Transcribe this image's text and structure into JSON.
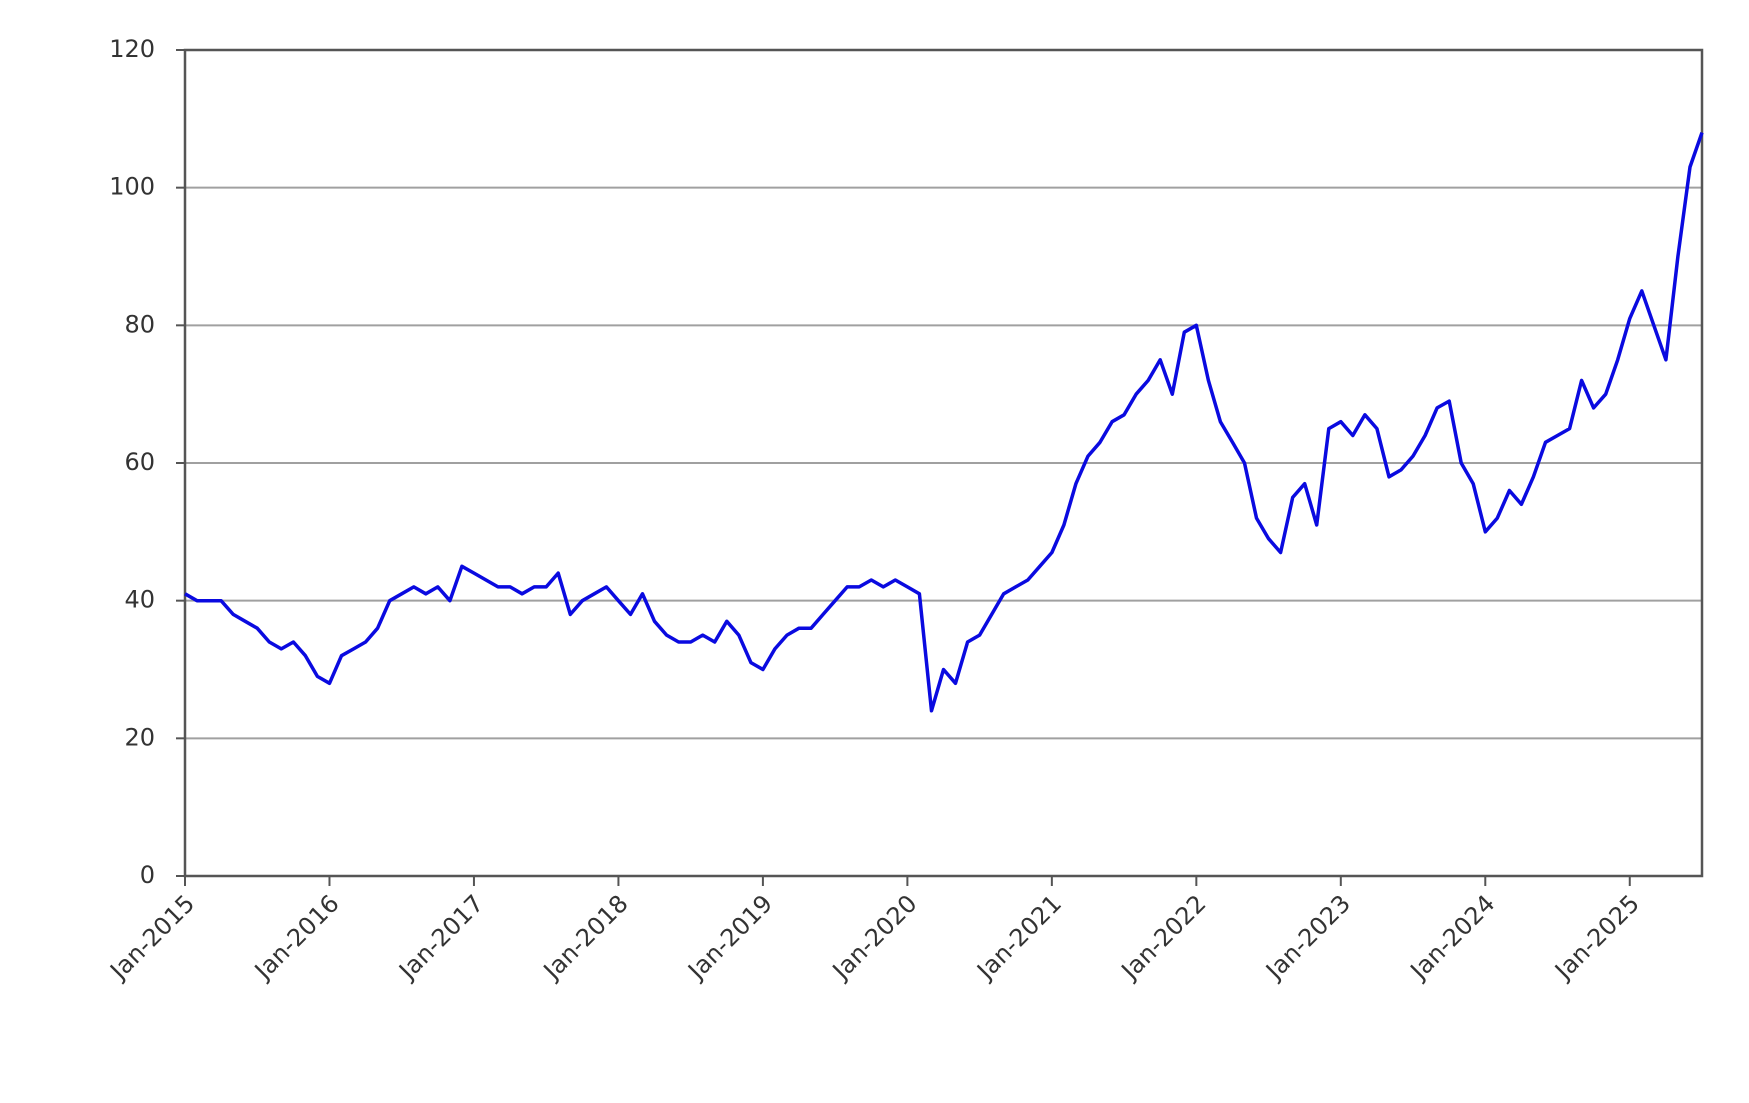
{
  "chart_data": {
    "type": "line",
    "color": "#0a0ae0",
    "grid": true,
    "x": [
      "2015-01",
      "2015-02",
      "2015-03",
      "2015-04",
      "2015-05",
      "2015-06",
      "2015-07",
      "2015-08",
      "2015-09",
      "2015-10",
      "2015-11",
      "2015-12",
      "2016-01",
      "2016-02",
      "2016-03",
      "2016-04",
      "2016-05",
      "2016-06",
      "2016-07",
      "2016-08",
      "2016-09",
      "2016-10",
      "2016-11",
      "2016-12",
      "2017-01",
      "2017-02",
      "2017-03",
      "2017-04",
      "2017-05",
      "2017-06",
      "2017-07",
      "2017-08",
      "2017-09",
      "2017-10",
      "2017-11",
      "2017-12",
      "2018-01",
      "2018-02",
      "2018-03",
      "2018-04",
      "2018-05",
      "2018-06",
      "2018-07",
      "2018-08",
      "2018-09",
      "2018-10",
      "2018-11",
      "2018-12",
      "2019-01",
      "2019-02",
      "2019-03",
      "2019-04",
      "2019-05",
      "2019-06",
      "2019-07",
      "2019-08",
      "2019-09",
      "2019-10",
      "2019-11",
      "2019-12",
      "2020-01",
      "2020-02",
      "2020-03",
      "2020-04",
      "2020-05",
      "2020-06",
      "2020-07",
      "2020-08",
      "2020-09",
      "2020-10",
      "2020-11",
      "2020-12",
      "2021-01",
      "2021-02",
      "2021-03",
      "2021-04",
      "2021-05",
      "2021-06",
      "2021-07",
      "2021-08",
      "2021-09",
      "2021-10",
      "2021-11",
      "2021-12",
      "2022-01",
      "2022-02",
      "2022-03",
      "2022-04",
      "2022-05",
      "2022-06",
      "2022-07",
      "2022-08",
      "2022-09",
      "2022-10",
      "2022-11",
      "2022-12",
      "2023-01",
      "2023-02",
      "2023-03",
      "2023-04",
      "2023-05",
      "2023-06",
      "2023-07",
      "2023-08",
      "2023-09",
      "2023-10",
      "2023-11",
      "2023-12",
      "2024-01",
      "2024-02",
      "2024-03",
      "2024-04",
      "2024-05",
      "2024-06",
      "2024-07",
      "2024-08",
      "2024-09",
      "2024-10",
      "2024-11",
      "2024-12",
      "2025-01",
      "2025-02",
      "2025-03",
      "2025-04",
      "2025-05",
      "2025-06",
      "2025-07"
    ],
    "values": [
      41,
      40,
      40,
      40,
      38,
      37,
      36,
      34,
      33,
      34,
      32,
      29,
      28,
      32,
      33,
      34,
      36,
      40,
      41,
      42,
      41,
      42,
      40,
      45,
      44,
      43,
      42,
      42,
      41,
      42,
      42,
      44,
      38,
      40,
      41,
      42,
      40,
      38,
      41,
      37,
      35,
      34,
      34,
      35,
      34,
      37,
      35,
      31,
      30,
      33,
      35,
      36,
      36,
      38,
      40,
      42,
      42,
      43,
      42,
      43,
      42,
      41,
      24,
      30,
      28,
      34,
      35,
      38,
      41,
      42,
      43,
      45,
      47,
      51,
      57,
      61,
      63,
      66,
      67,
      70,
      72,
      75,
      70,
      79,
      80,
      72,
      66,
      63,
      60,
      52,
      49,
      47,
      55,
      57,
      51,
      65,
      66,
      64,
      67,
      65,
      58,
      59,
      61,
      64,
      68,
      69,
      60,
      57,
      50,
      52,
      56,
      54,
      58,
      63,
      64,
      65,
      72,
      68,
      70,
      75,
      81,
      85,
      80,
      75,
      90,
      103,
      108
    ],
    "xlim": [
      "2015-01",
      "2025-07"
    ],
    "xticks": [
      {
        "value": "2015-01",
        "label": "Jan-2015"
      },
      {
        "value": "2016-01",
        "label": "Jan-2016"
      },
      {
        "value": "2017-01",
        "label": "Jan-2017"
      },
      {
        "value": "2018-01",
        "label": "Jan-2018"
      },
      {
        "value": "2019-01",
        "label": "Jan-2019"
      },
      {
        "value": "2020-01",
        "label": "Jan-2020"
      },
      {
        "value": "2021-01",
        "label": "Jan-2021"
      },
      {
        "value": "2022-01",
        "label": "Jan-2022"
      },
      {
        "value": "2023-01",
        "label": "Jan-2023"
      },
      {
        "value": "2024-01",
        "label": "Jan-2024"
      },
      {
        "value": "2025-01",
        "label": "Jan-2025"
      }
    ],
    "ylim": [
      0,
      120
    ],
    "yticks": [
      0,
      20,
      40,
      60,
      80,
      100,
      120
    ]
  }
}
